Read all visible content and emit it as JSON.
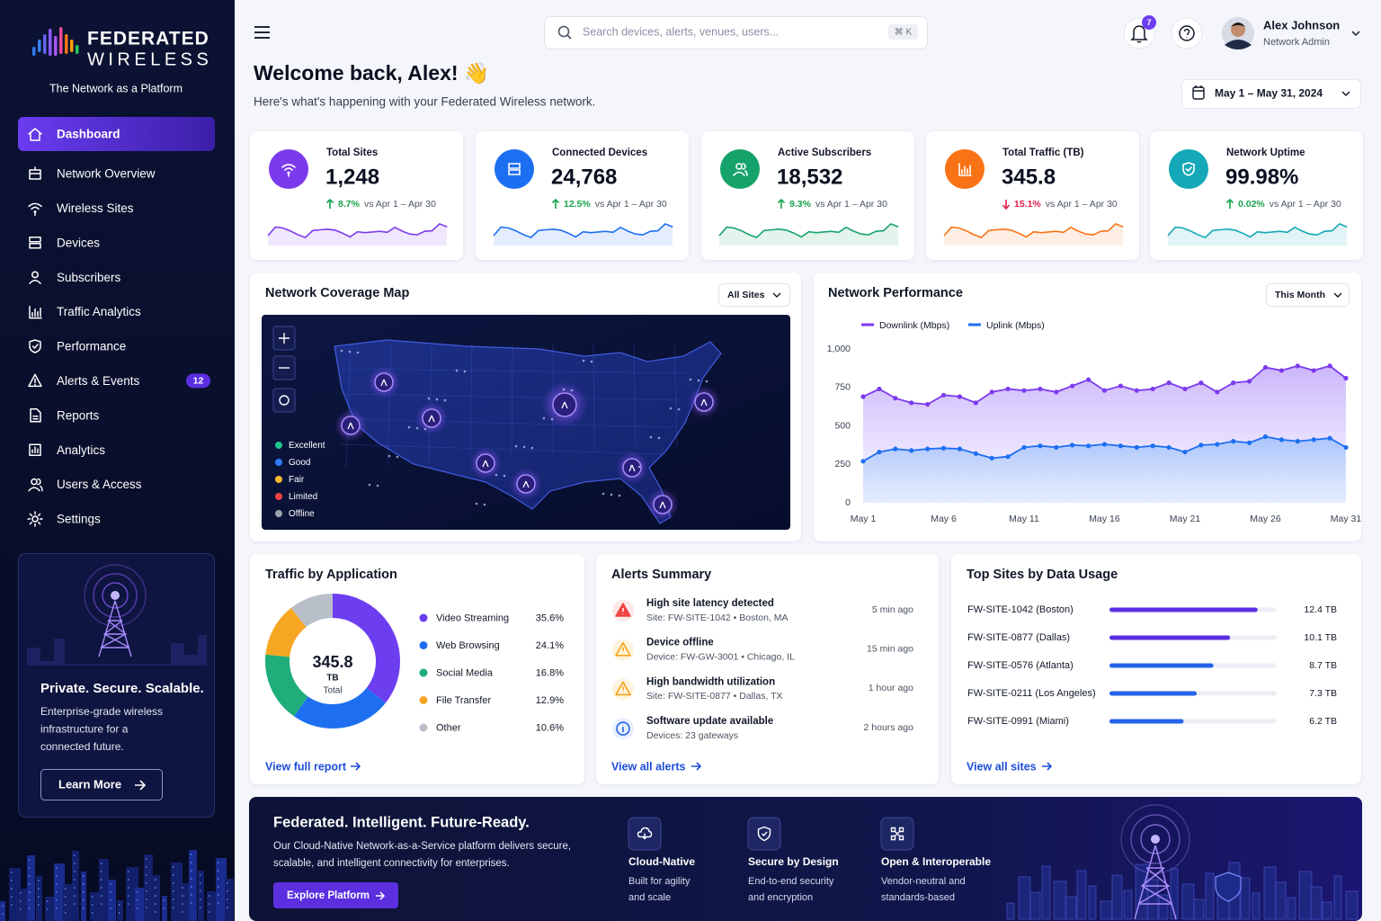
{
  "brand": {
    "name_top": "FEDERATED",
    "name_bottom": "WIRELESS",
    "tagline": "The Network as a Platform"
  },
  "nav": [
    {
      "label": "Dashboard",
      "active": true
    },
    {
      "label": "Network Overview"
    },
    {
      "label": "Wireless Sites"
    },
    {
      "label": "Devices"
    },
    {
      "label": "Subscribers"
    },
    {
      "label": "Traffic Analytics"
    },
    {
      "label": "Performance"
    },
    {
      "label": "Alerts & Events",
      "badge": 12
    },
    {
      "label": "Reports"
    },
    {
      "label": "Analytics"
    },
    {
      "label": "Users & Access"
    },
    {
      "label": "Settings"
    }
  ],
  "promo": {
    "title": "Private. Secure. Scalable.",
    "lines": [
      "Enterprise-grade wireless",
      "infrastructure for a",
      "connected future."
    ],
    "button": "Learn More"
  },
  "search": {
    "placeholder": "Search devices, alerts, venues, users...",
    "shortcut": "⌘ K"
  },
  "notifications": 7,
  "user": {
    "name": "Alex Johnson",
    "role": "Network Admin"
  },
  "welcome": {
    "title": "Welcome back, Alex! 👋",
    "subtitle": "Here's what's happening with your Federated Wireless network."
  },
  "date_range": "May 1 – May 31, 2024",
  "kpis": [
    {
      "title": "Total Sites",
      "value": "1,248",
      "change": "8.7%",
      "period": "vs Apr 1 – Apr 30",
      "trend": "up",
      "color": "#7c3aed"
    },
    {
      "title": "Connected Devices",
      "value": "24,768",
      "change": "12.5%",
      "period": "vs Apr 1 – Apr 30",
      "trend": "up",
      "color": "#1d6ff2"
    },
    {
      "title": "Active Subscribers",
      "value": "18,532",
      "change": "9.3%",
      "period": "vs Apr 1 – Apr 30",
      "trend": "up",
      "color": "#16a36b"
    },
    {
      "title": "Total Traffic (TB)",
      "value": "345.8",
      "change": "15.1%",
      "period": "vs Apr 1 – Apr 30",
      "trend": "down",
      "color": "#f97316"
    },
    {
      "title": "Network Uptime",
      "value": "99.98%",
      "change": "0.02%",
      "period": "vs Apr 1 – Apr 30",
      "trend": "up",
      "color": "#14a8b8"
    }
  ],
  "coverage_map": {
    "title": "Network Coverage Map",
    "filter": "All Sites",
    "legend": [
      {
        "label": "Excellent",
        "color": "#22c58b"
      },
      {
        "label": "Good",
        "color": "#2f7cf6"
      },
      {
        "label": "Fair",
        "color": "#f5b82e"
      },
      {
        "label": "Limited",
        "color": "#ef4444"
      },
      {
        "label": "Offline",
        "color": "#9ca3af"
      }
    ]
  },
  "performance": {
    "type": "line",
    "title": "Network Performance",
    "filter": "This Month",
    "categories": [
      "May 1",
      null,
      null,
      null,
      null,
      "May 6",
      null,
      null,
      null,
      null,
      "May 11",
      null,
      null,
      null,
      null,
      "May 16",
      null,
      null,
      null,
      null,
      "May 21",
      null,
      null,
      null,
      null,
      "May 26",
      null,
      null,
      null,
      null,
      "May 31"
    ],
    "series": [
      {
        "name": "Downlink (Mbps)",
        "color": "#7c3aed",
        "values": [
          690,
          740,
          680,
          650,
          640,
          700,
          690,
          650,
          720,
          740,
          730,
          740,
          720,
          760,
          800,
          730,
          760,
          730,
          740,
          780,
          740,
          780,
          720,
          780,
          790,
          880,
          860,
          890,
          860,
          890,
          810
        ]
      },
      {
        "name": "Uplink (Mbps)",
        "color": "#1d6ff2",
        "values": [
          270,
          330,
          350,
          340,
          350,
          355,
          350,
          320,
          290,
          300,
          360,
          370,
          360,
          375,
          370,
          380,
          370,
          360,
          370,
          360,
          330,
          375,
          380,
          400,
          390,
          430,
          410,
          400,
          410,
          420,
          360
        ]
      }
    ],
    "ylim": [
      0,
      1000
    ],
    "yticks": [
      0,
      250,
      500,
      750,
      {
        "value": 1000,
        "label": "1,000"
      }
    ],
    "grid": false
  },
  "traffic": {
    "type": "pie",
    "title": "Traffic by Application",
    "total": "345.8",
    "unit": "TB",
    "total_label": "Total",
    "categories": [
      "Video Streaming",
      "Web Browsing",
      "Social Media",
      "File Transfer",
      "Other"
    ],
    "values": [
      35.6,
      24.1,
      16.8,
      12.9,
      10.6
    ],
    "value_labels": [
      "35.6%",
      "24.1%",
      "16.8%",
      "12.9%",
      "10.6%"
    ],
    "colors": [
      "#6d3df0",
      "#1e6ff0",
      "#1fae7a",
      "#f6a623",
      "#b8bfc9"
    ],
    "link": "View full report"
  },
  "alerts": {
    "title": "Alerts Summary",
    "items": [
      {
        "title": "High site latency detected",
        "detail": "Site: FW-SITE-1042 • Boston, MA",
        "time": "5 min ago",
        "severity": "critical"
      },
      {
        "title": "Device offline",
        "detail": "Device: FW-GW-3001 • Chicago, IL",
        "time": "15 min ago",
        "severity": "warning"
      },
      {
        "title": "High bandwidth utilization",
        "detail": "Site: FW-SITE-0877 • Dallas, TX",
        "time": "1 hour ago",
        "severity": "warning"
      },
      {
        "title": "Software update available",
        "detail": "Devices: 23 gateways",
        "time": "2 hours ago",
        "severity": "info"
      }
    ],
    "link": "View all alerts"
  },
  "top_sites": {
    "type": "bar",
    "title": "Top Sites by Data Usage",
    "categories": [
      "FW-SITE-1042 (Boston)",
      "FW-SITE-0877 (Dallas)",
      "FW-SITE-0576 (Atlanta)",
      "FW-SITE-0211 (Los Angeles)",
      "FW-SITE-0991 (Miami)"
    ],
    "values": [
      12.4,
      10.1,
      8.7,
      7.3,
      6.2
    ],
    "value_labels": [
      "12.4 TB",
      "10.1 TB",
      "8.7 TB",
      "7.3 TB",
      "6.2 TB"
    ],
    "colors": [
      "#5b2fe0",
      "#5b2fe0",
      "#2563eb",
      "#2563eb",
      "#2563eb"
    ],
    "xlim": [
      0,
      14
    ],
    "link": "View all sites"
  },
  "banner": {
    "title": "Federated. Intelligent. Future-Ready.",
    "lines": [
      "Our Cloud-Native Network-as-a-Service platform delivers secure,",
      "scalable, and intelligent connectivity for enterprises."
    ],
    "button": "Explore Platform",
    "features": [
      {
        "title": "Cloud-Native",
        "lines": [
          "Built for agility",
          "and scale"
        ]
      },
      {
        "title": "Secure by Design",
        "lines": [
          "End-to-end security",
          "and encryption"
        ]
      },
      {
        "title": "Open & Interoperable",
        "lines": [
          "Vendor-neutral and",
          "standards-based"
        ]
      }
    ]
  }
}
